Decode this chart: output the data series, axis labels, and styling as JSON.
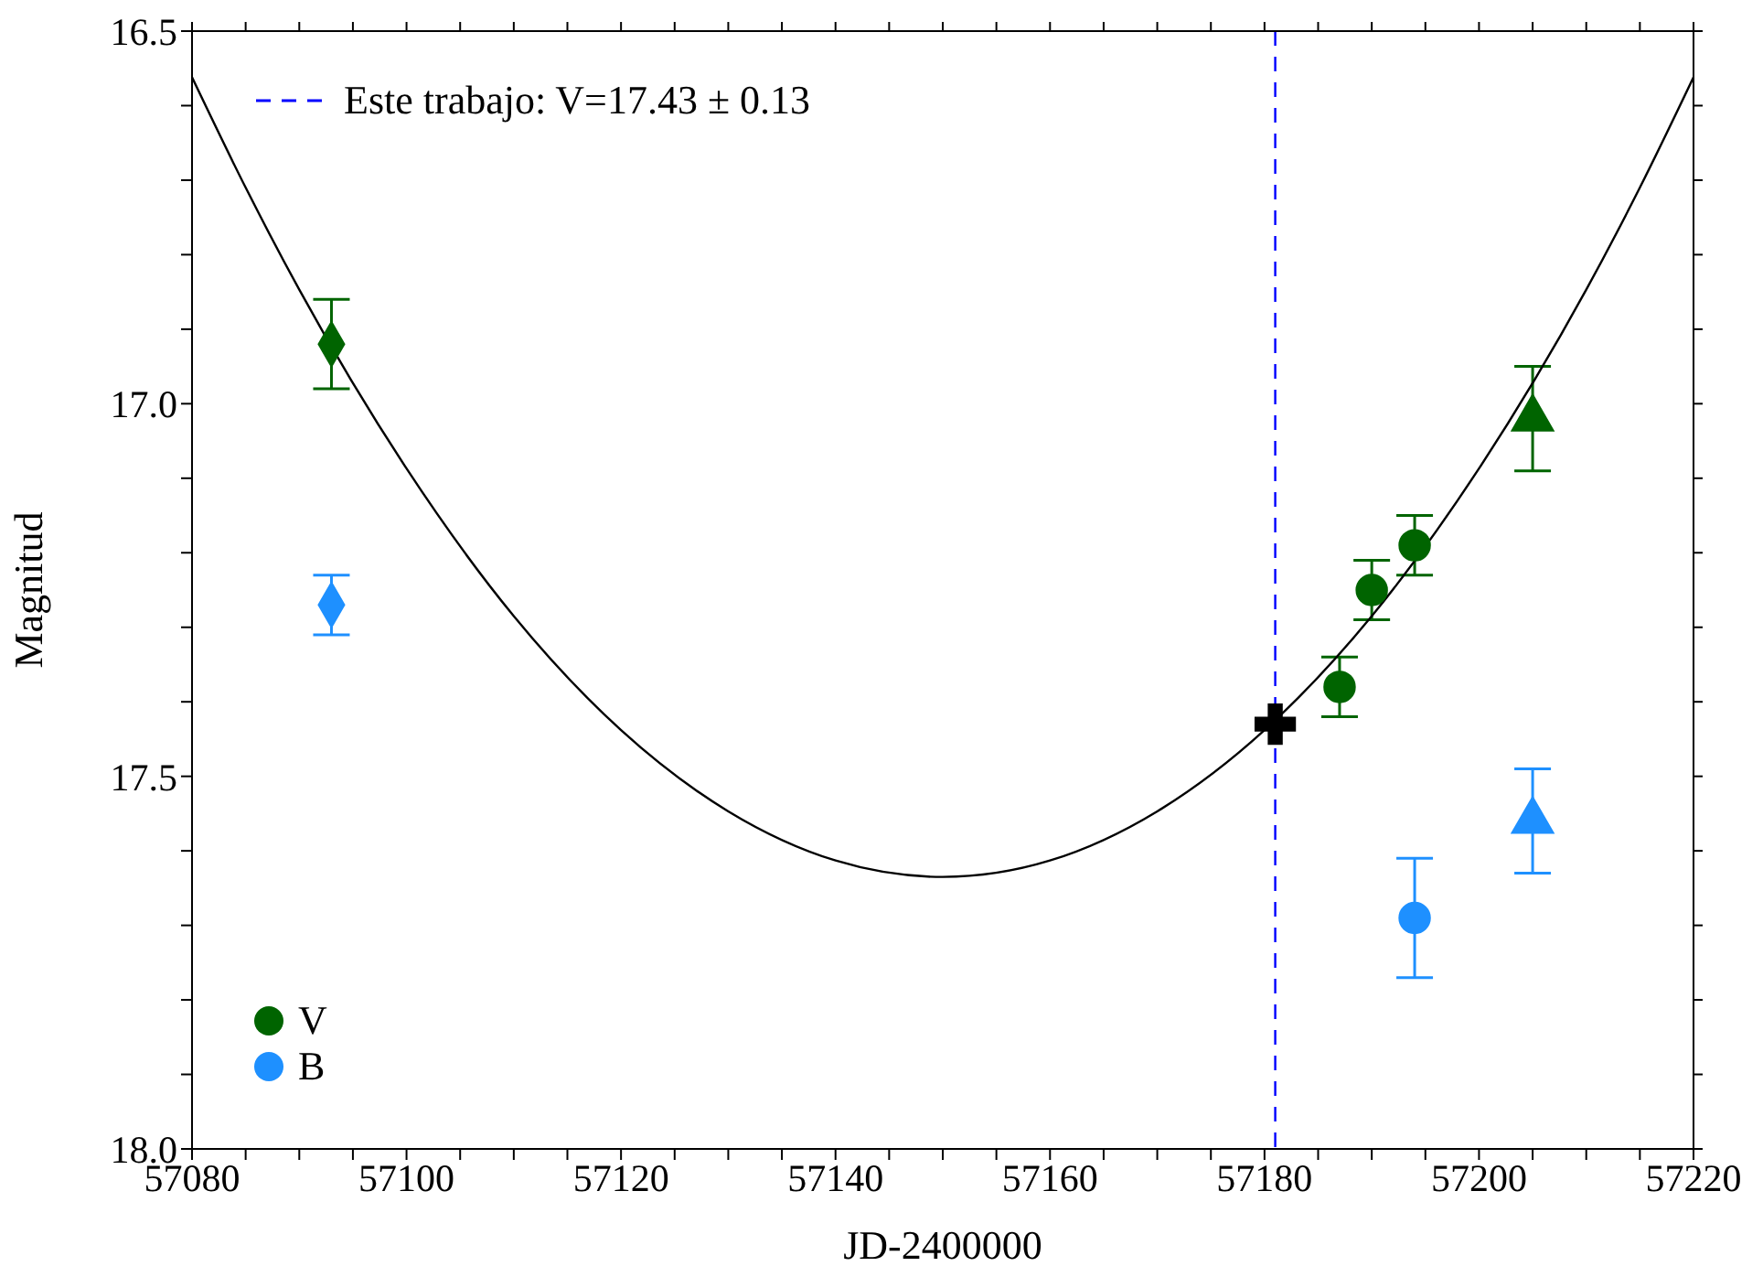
{
  "chart_data": {
    "type": "scatter",
    "xlabel": "JD-2400000",
    "ylabel": "Magnitud",
    "xlim": [
      57080,
      57220
    ],
    "xticks": [
      57080,
      {
        "value": 57085,
        "label": null
      },
      {
        "value": 57090,
        "label": null
      },
      {
        "value": 57095,
        "label": null
      },
      57100,
      {
        "value": 57105,
        "label": null
      },
      {
        "value": 57110,
        "label": null
      },
      {
        "value": 57115,
        "label": null
      },
      57120,
      {
        "value": 57125,
        "label": null
      },
      {
        "value": 57130,
        "label": null
      },
      {
        "value": 57135,
        "label": null
      },
      57140,
      {
        "value": 57145,
        "label": null
      },
      {
        "value": 57150,
        "label": null
      },
      {
        "value": 57155,
        "label": null
      },
      57160,
      {
        "value": 57165,
        "label": null
      },
      {
        "value": 57170,
        "label": null
      },
      {
        "value": 57175,
        "label": null
      },
      57180,
      {
        "value": 57185,
        "label": null
      },
      {
        "value": 57190,
        "label": null
      },
      {
        "value": 57195,
        "label": null
      },
      57200,
      {
        "value": 57205,
        "label": null
      },
      {
        "value": 57210,
        "label": null
      },
      {
        "value": 57215,
        "label": null
      },
      57220
    ],
    "ylim": [
      18.0,
      16.5
    ],
    "yticks": [
      {
        "value": 16.5,
        "label": "16.5"
      },
      {
        "value": 16.6,
        "label": null
      },
      {
        "value": 16.7,
        "label": null
      },
      {
        "value": 16.8,
        "label": null
      },
      {
        "value": 16.9,
        "label": null
      },
      {
        "value": 17.0,
        "label": "17.0"
      },
      {
        "value": 17.1,
        "label": null
      },
      {
        "value": 17.2,
        "label": null
      },
      {
        "value": 17.3,
        "label": null
      },
      {
        "value": 17.4,
        "label": null
      },
      {
        "value": 17.5,
        "label": "17.5"
      },
      {
        "value": 17.6,
        "label": null
      },
      {
        "value": 17.7,
        "label": null
      },
      {
        "value": 17.8,
        "label": null
      },
      {
        "value": 17.9,
        "label": null
      },
      {
        "value": 18.0,
        "label": "18.0"
      }
    ],
    "legend": "left",
    "series": [
      {
        "name": "V",
        "color": "#006400",
        "marker": "circle",
        "x": [
          57190,
          57194
        ],
        "values": [
          17.25,
          17.19
        ],
        "errors": [
          0.04,
          0.04
        ]
      },
      {
        "color": "#006400",
        "marker": "diamond",
        "x": [
          57093
        ],
        "values": [
          16.92
        ],
        "errors": [
          0.06
        ]
      },
      {
        "color": "#006400",
        "marker": "triangle",
        "x": [
          57205
        ],
        "values": [
          17.02
        ],
        "errors": [
          0.07
        ]
      },
      {
        "color": "#006400",
        "marker": "circle",
        "x": [
          57187
        ],
        "values": [
          17.38
        ],
        "errors": [
          0.04
        ]
      },
      {
        "name": "B",
        "color": "#1e90ff",
        "marker": "circle",
        "x": [
          57194
        ],
        "values": [
          17.69
        ],
        "errors": [
          0.08
        ]
      },
      {
        "color": "#1e90ff",
        "marker": "diamond",
        "x": [
          57093
        ],
        "values": [
          17.27
        ],
        "errors": [
          0.04
        ]
      },
      {
        "color": "#1e90ff",
        "marker": "triangle",
        "x": [
          57205
        ],
        "values": [
          17.56
        ],
        "errors": [
          0.07
        ]
      },
      {
        "color": "#000000",
        "marker": "cross",
        "x": [
          57181
        ],
        "values": [
          17.43
        ]
      },
      {
        "name": "Este trabajo: V=17.43 ± 0.13",
        "type": "line",
        "color": "#0000ff",
        "marker": "none",
        "line_style": "dashed",
        "x": [
          57181,
          57181
        ],
        "values": [
          16.5,
          18.0
        ]
      },
      {
        "type": "line",
        "color": "#000000",
        "marker": "none",
        "x": [
          57080,
          57085,
          57090,
          57100,
          57110,
          57120,
          57130,
          57140,
          57150,
          57160,
          57170,
          57180,
          57190,
          57200,
          57210,
          57215,
          57220
        ],
        "values": [
          16.562,
          16.71,
          16.847,
          17.087,
          17.285,
          17.438,
          17.547,
          17.613,
          17.635,
          17.613,
          17.547,
          17.438,
          17.285,
          17.087,
          16.847,
          16.71,
          16.562
        ]
      }
    ]
  }
}
